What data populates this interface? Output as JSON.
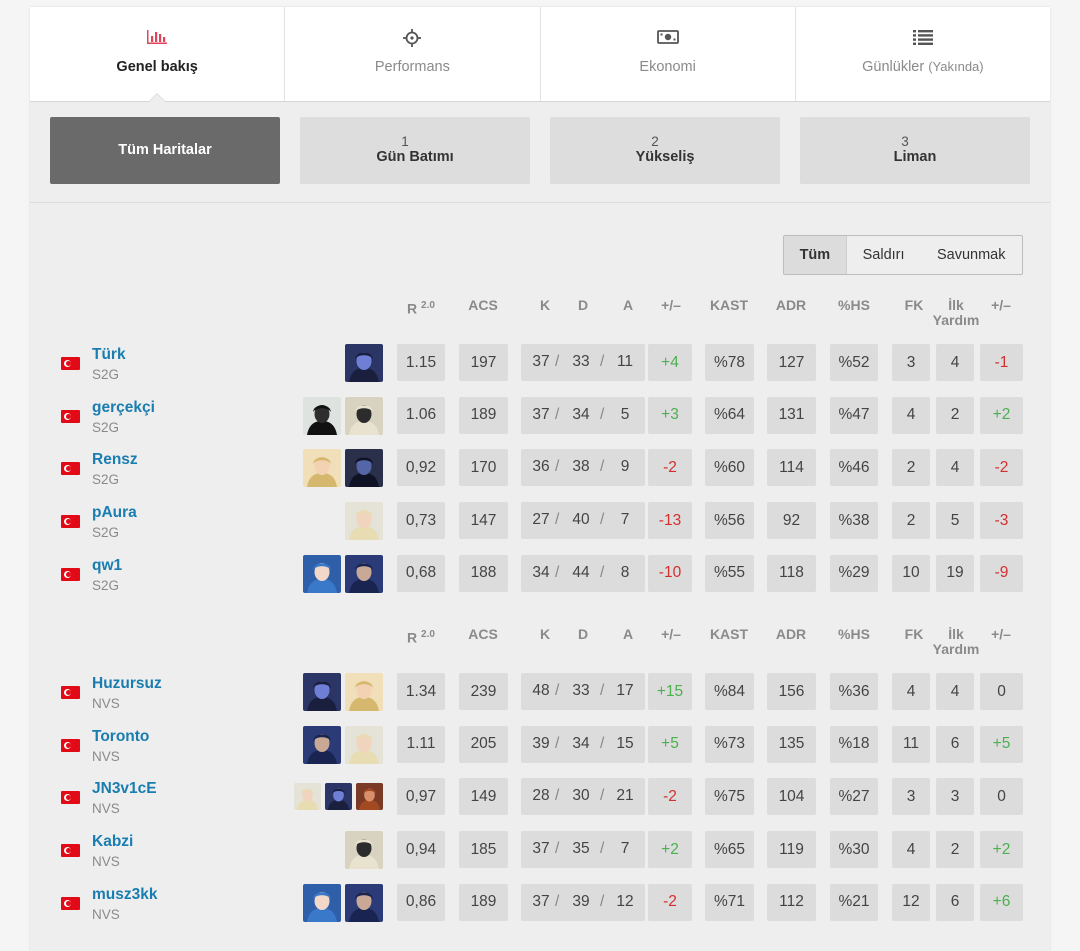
{
  "tabs": [
    {
      "label": "Genel bakış",
      "sub": "",
      "icon": "bar-chart-icon",
      "active": true
    },
    {
      "label": "Performans",
      "sub": "",
      "icon": "crosshair-icon",
      "active": false
    },
    {
      "label": "Ekonomi",
      "sub": "",
      "icon": "money-icon",
      "active": false
    },
    {
      "label": "Günlükler",
      "sub": "(Yakında)",
      "icon": "list-icon",
      "active": false
    }
  ],
  "maps": [
    {
      "num": "",
      "name": "Tüm Haritalar",
      "active": true
    },
    {
      "num": "1",
      "name": "Gün Batımı",
      "active": false
    },
    {
      "num": "2",
      "name": "Yükseliş",
      "active": false
    },
    {
      "num": "3",
      "name": "Liman",
      "active": false
    }
  ],
  "side_filter": {
    "all": "Tüm",
    "attack": "Saldırı",
    "defense": "Savunmak"
  },
  "headers": {
    "rating": "R",
    "rating_sup": "2.0",
    "acs": "ACS",
    "k": "K",
    "d": "D",
    "a": "A",
    "pm": "+/–",
    "kast": "KAST",
    "adr": "ADR",
    "hs": "%HS",
    "fk": "FK",
    "fd_line1": "İlk",
    "fd_line2": "Yardım",
    "fpm": "+/–"
  },
  "colors": {
    "accent": "#e0435a",
    "link": "#1a7db0",
    "positive": "#4caf50",
    "negative": "#d32f2f"
  },
  "teams": [
    {
      "players": [
        {
          "name": "Türk",
          "team": "S2G",
          "agents": [
            "omen"
          ],
          "rating": "1.15",
          "acs": "197",
          "k": "37",
          "d": "33",
          "a": "11",
          "pm": "+4",
          "kast": "%78",
          "adr": "127",
          "hs": "%52",
          "fk": "3",
          "fd": "4",
          "fpm": "-1"
        },
        {
          "name": "gerçekçi",
          "team": "S2G",
          "agents": [
            "viper",
            "cypher"
          ],
          "rating": "1.06",
          "acs": "189",
          "k": "37",
          "d": "34",
          "a": "5",
          "pm": "+3",
          "kast": "%64",
          "adr": "131",
          "hs": "%47",
          "fk": "4",
          "fd": "2",
          "fpm": "+2"
        },
        {
          "name": "Rensz",
          "team": "S2G",
          "agents": [
            "killjoy",
            "kayo"
          ],
          "rating": "0,92",
          "acs": "170",
          "k": "36",
          "d": "38",
          "a": "9",
          "pm": "-2",
          "kast": "%60",
          "adr": "114",
          "hs": "%46",
          "fk": "2",
          "fd": "4",
          "fpm": "-2"
        },
        {
          "name": "pAura",
          "team": "S2G",
          "agents": [
            "sova"
          ],
          "rating": "0,73",
          "acs": "147",
          "k": "27",
          "d": "40",
          "a": "7",
          "pm": "-13",
          "kast": "%56",
          "adr": "92",
          "hs": "%38",
          "fk": "2",
          "fd": "5",
          "fpm": "-3"
        },
        {
          "name": "qw1",
          "team": "S2G",
          "agents": [
            "jett",
            "yoru"
          ],
          "rating": "0,68",
          "acs": "188",
          "k": "34",
          "d": "44",
          "a": "8",
          "pm": "-10",
          "kast": "%55",
          "adr": "118",
          "hs": "%29",
          "fk": "10",
          "fd": "19",
          "fpm": "-9"
        }
      ]
    },
    {
      "players": [
        {
          "name": "Huzursuz",
          "team": "NVS",
          "agents": [
            "omen",
            "killjoy"
          ],
          "rating": "1.34",
          "acs": "239",
          "k": "48",
          "d": "33",
          "a": "17",
          "pm": "+15",
          "kast": "%84",
          "adr": "156",
          "hs": "%36",
          "fk": "4",
          "fd": "4",
          "fpm": "0"
        },
        {
          "name": "Toronto",
          "team": "NVS",
          "agents": [
            "yoru",
            "sova"
          ],
          "rating": "1.11",
          "acs": "205",
          "k": "39",
          "d": "34",
          "a": "15",
          "pm": "+5",
          "kast": "%73",
          "adr": "135",
          "hs": "%18",
          "fk": "11",
          "fd": "6",
          "fpm": "+5"
        },
        {
          "name": "JN3v1cE",
          "team": "NVS",
          "agents": [
            "sova",
            "omen",
            "breach"
          ],
          "rating": "0,97",
          "acs": "149",
          "k": "28",
          "d": "30",
          "a": "21",
          "pm": "-2",
          "kast": "%75",
          "adr": "104",
          "hs": "%27",
          "fk": "3",
          "fd": "3",
          "fpm": "0"
        },
        {
          "name": "Kabzi",
          "team": "NVS",
          "agents": [
            "cypher"
          ],
          "rating": "0,94",
          "acs": "185",
          "k": "37",
          "d": "35",
          "a": "7",
          "pm": "+2",
          "kast": "%65",
          "adr": "119",
          "hs": "%30",
          "fk": "4",
          "fd": "2",
          "fpm": "+2"
        },
        {
          "name": "musz3kk",
          "team": "NVS",
          "agents": [
            "jett",
            "yoru"
          ],
          "rating": "0,86",
          "acs": "189",
          "k": "37",
          "d": "39",
          "a": "12",
          "pm": "-2",
          "kast": "%71",
          "adr": "112",
          "hs": "%21",
          "fk": "12",
          "fd": "6",
          "fpm": "+6"
        }
      ]
    }
  ]
}
